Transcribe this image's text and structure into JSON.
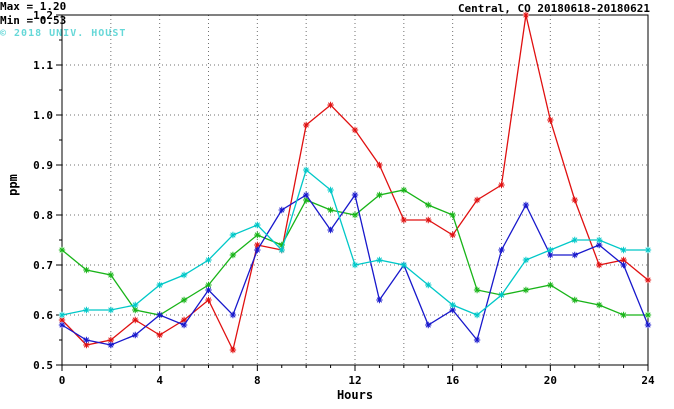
{
  "title": "Central, CO 20180618-20180621",
  "annotation": {
    "max": "Max = 1.20",
    "min": "Min = 0.53"
  },
  "watermark": "© 2018 UNIV. HOUST",
  "chart_data": {
    "type": "line",
    "title": "Central, CO 20180618-20180621",
    "xlabel": "Hours",
    "ylabel": "ppm",
    "xlim": [
      0,
      24
    ],
    "ylim": [
      0.5,
      1.2
    ],
    "xticks": [
      0,
      4,
      8,
      12,
      16,
      20,
      24
    ],
    "yticks": [
      0.5,
      0.6,
      0.7,
      0.8,
      0.9,
      1.0,
      1.1,
      1.2
    ],
    "grid_x": [
      2,
      4,
      6,
      8,
      10,
      12,
      14,
      16,
      18,
      20,
      22
    ],
    "grid_y": [
      0.6,
      0.7,
      0.8,
      0.9,
      1.0,
      1.1
    ],
    "grid": true,
    "legend": "none",
    "x": [
      0,
      1,
      2,
      3,
      4,
      5,
      6,
      7,
      8,
      9,
      10,
      11,
      12,
      13,
      14,
      15,
      16,
      17,
      18,
      19,
      20,
      21,
      22,
      23,
      24
    ],
    "series": [
      {
        "name": "red-series",
        "color": "#e01010",
        "values": [
          0.59,
          0.54,
          0.55,
          0.59,
          0.56,
          0.59,
          0.63,
          0.53,
          0.74,
          0.73,
          0.98,
          1.02,
          0.97,
          0.9,
          0.79,
          0.79,
          0.76,
          0.83,
          0.86,
          1.2,
          0.99,
          0.83,
          0.7,
          0.71,
          0.67
        ]
      },
      {
        "name": "green-series",
        "color": "#18b418",
        "values": [
          0.73,
          0.69,
          0.68,
          0.61,
          0.6,
          0.63,
          0.66,
          0.72,
          0.76,
          0.74,
          0.83,
          0.81,
          0.8,
          0.84,
          0.85,
          0.82,
          0.8,
          0.65,
          0.64,
          0.65,
          0.66,
          0.63,
          0.62,
          0.6,
          0.6
        ]
      },
      {
        "name": "blue-series",
        "color": "#1818cc",
        "values": [
          0.58,
          0.55,
          0.54,
          0.56,
          0.6,
          0.58,
          0.65,
          0.6,
          0.73,
          0.81,
          0.84,
          0.77,
          0.84,
          0.63,
          0.7,
          0.58,
          0.61,
          0.55,
          0.73,
          0.82,
          0.72,
          0.72,
          0.74,
          0.7,
          0.58
        ]
      },
      {
        "name": "cyan-series",
        "color": "#00c8c8",
        "values": [
          0.6,
          0.61,
          0.61,
          0.62,
          0.66,
          0.68,
          0.71,
          0.76,
          0.78,
          0.73,
          0.89,
          0.85,
          0.7,
          0.71,
          0.7,
          0.66,
          0.62,
          0.6,
          0.64,
          0.71,
          0.73,
          0.75,
          0.75,
          0.73,
          0.73
        ]
      }
    ]
  }
}
